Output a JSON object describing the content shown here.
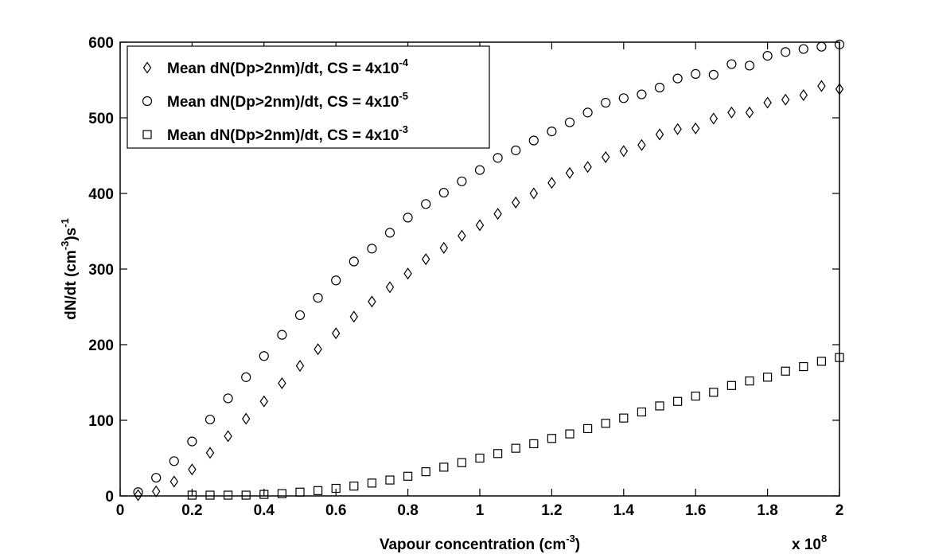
{
  "chart_data": {
    "type": "scatter",
    "title": "",
    "xlabel": "Vapour concentration (cm",
    "xlabel_sup": "-3",
    "xlabel_tail": ")",
    "x_multiplier_text": "x 10",
    "x_multiplier_exp": "8",
    "ylabel": "dN/dt (cm",
    "ylabel_sup1": "-3",
    "ylabel_mid": ")s",
    "ylabel_sup2": "-1",
    "xlim": [
      0,
      2
    ],
    "ylim": [
      0,
      600
    ],
    "xticks": [
      "0",
      "0.2",
      "0.4",
      "0.6",
      "0.8",
      "1",
      "1.2",
      "1.4",
      "1.6",
      "1.8",
      "2"
    ],
    "yticks": [
      "0",
      "100",
      "200",
      "300",
      "400",
      "500",
      "600"
    ],
    "grid": false,
    "legend_position": "top-left",
    "series": [
      {
        "name": "Mean dN(Dp>2nm)/dt, CS = 4x10",
        "name_sup": "-4",
        "marker": "diamond",
        "x": [
          0.05,
          0.1,
          0.15,
          0.2,
          0.25,
          0.3,
          0.35,
          0.4,
          0.45,
          0.5,
          0.55,
          0.6,
          0.65,
          0.7,
          0.75,
          0.8,
          0.85,
          0.9,
          0.95,
          1.0,
          1.05,
          1.1,
          1.15,
          1.2,
          1.25,
          1.3,
          1.35,
          1.4,
          1.45,
          1.5,
          1.55,
          1.6,
          1.65,
          1.7,
          1.75,
          1.8,
          1.85,
          1.9,
          1.95,
          2.0
        ],
        "y": [
          1,
          6,
          19,
          35,
          57,
          79,
          102,
          125,
          149,
          172,
          194,
          215,
          237,
          257,
          276,
          294,
          313,
          328,
          344,
          358,
          373,
          388,
          400,
          414,
          427,
          435,
          448,
          456,
          464,
          478,
          485,
          486,
          499,
          507,
          507,
          520,
          524,
          530,
          542,
          538
        ]
      },
      {
        "name": "Mean dN(Dp>2nm)/dt, CS = 4x10",
        "name_sup": "-5",
        "marker": "circle",
        "x": [
          0.05,
          0.1,
          0.15,
          0.2,
          0.25,
          0.3,
          0.35,
          0.4,
          0.45,
          0.5,
          0.55,
          0.6,
          0.65,
          0.7,
          0.75,
          0.8,
          0.85,
          0.9,
          0.95,
          1.0,
          1.05,
          1.1,
          1.15,
          1.2,
          1.25,
          1.3,
          1.35,
          1.4,
          1.45,
          1.5,
          1.55,
          1.6,
          1.65,
          1.7,
          1.75,
          1.8,
          1.85,
          1.9,
          1.95,
          2.0
        ],
        "y": [
          5,
          24,
          46,
          72,
          101,
          129,
          157,
          185,
          213,
          239,
          262,
          285,
          310,
          327,
          348,
          368,
          386,
          401,
          416,
          431,
          447,
          457,
          470,
          482,
          494,
          507,
          520,
          526,
          531,
          540,
          552,
          558,
          557,
          571,
          569,
          582,
          587,
          591,
          594,
          597
        ]
      },
      {
        "name": "Mean dN(Dp>2nm)/dt, CS = 4x10",
        "name_sup": "-3",
        "marker": "square",
        "x": [
          0.2,
          0.25,
          0.3,
          0.35,
          0.4,
          0.45,
          0.5,
          0.55,
          0.6,
          0.65,
          0.7,
          0.75,
          0.8,
          0.85,
          0.9,
          0.95,
          1.0,
          1.05,
          1.1,
          1.15,
          1.2,
          1.25,
          1.3,
          1.35,
          1.4,
          1.45,
          1.5,
          1.55,
          1.6,
          1.65,
          1.7,
          1.75,
          1.8,
          1.85,
          1.9,
          1.95,
          2.0
        ],
        "y": [
          1,
          1,
          1,
          1,
          2,
          3,
          5,
          7,
          10,
          13,
          17,
          21,
          26,
          32,
          38,
          44,
          50,
          56,
          63,
          69,
          76,
          82,
          89,
          96,
          103,
          111,
          119,
          125,
          132,
          137,
          146,
          152,
          157,
          165,
          171,
          178,
          183
        ]
      }
    ]
  }
}
